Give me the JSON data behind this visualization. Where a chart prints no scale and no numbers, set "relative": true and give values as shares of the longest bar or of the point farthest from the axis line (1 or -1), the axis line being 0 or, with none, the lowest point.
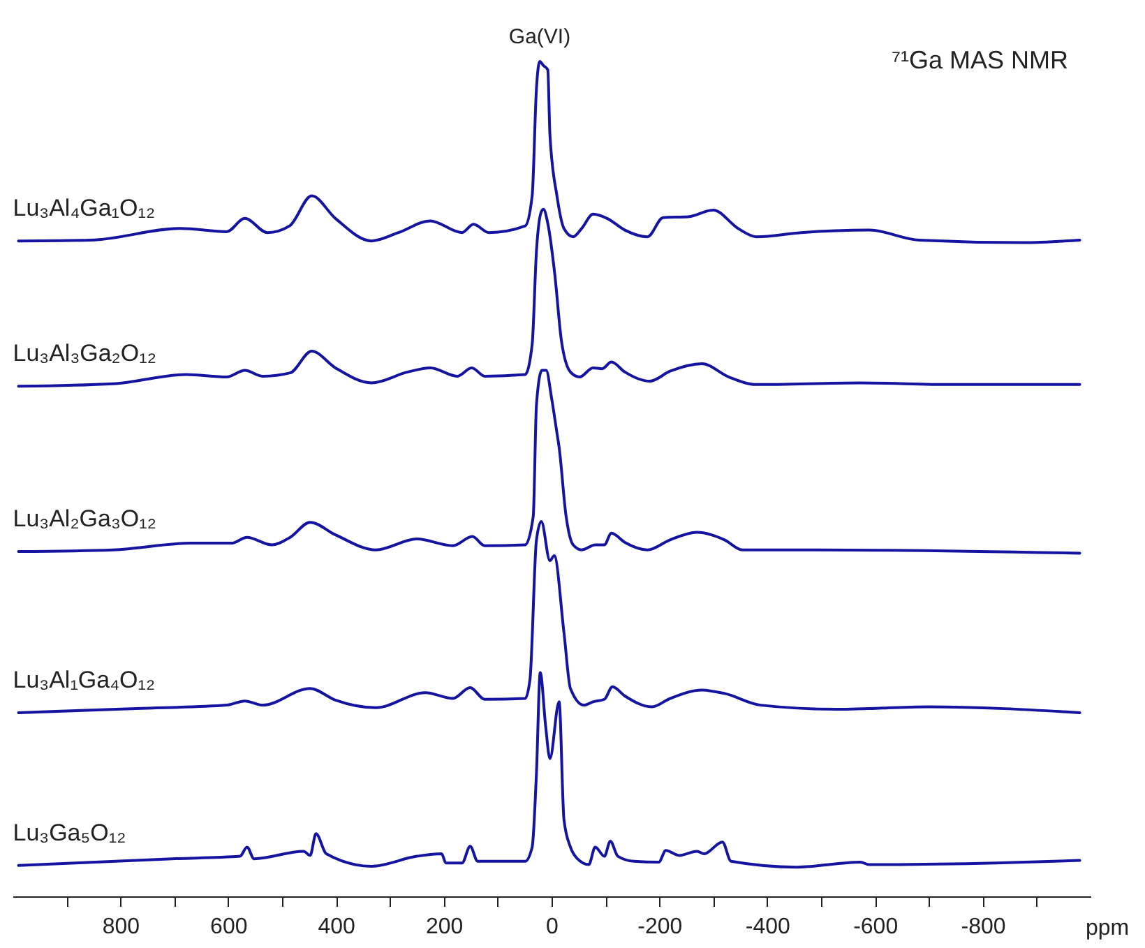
{
  "chart_data": {
    "type": "line",
    "relative": true,
    "title": "⁷¹Ga MAS NMR",
    "xlabel": "ppm",
    "xlim": [
      1000,
      -1000
    ],
    "xticks": [
      {
        "value": 900,
        "label": null
      },
      800,
      {
        "value": 700,
        "label": null
      },
      600,
      {
        "value": 500,
        "label": null
      },
      400,
      {
        "value": 300,
        "label": null
      },
      200,
      {
        "value": 100,
        "label": null
      },
      0,
      {
        "value": -100,
        "label": null
      },
      -200,
      {
        "value": -300,
        "label": null
      },
      -400,
      {
        "value": -500,
        "label": null
      },
      -600,
      {
        "value": -700,
        "label": null
      },
      -800,
      {
        "value": -900,
        "label": null
      }
    ],
    "annotations": [
      {
        "text": "Ga(VI)",
        "x": 22,
        "y": 1
      }
    ],
    "series": [
      {
        "name": "Lu₃Al₄Ga₁O₁₂",
        "color": "#1414a0",
        "x": [
          989,
          855,
          688,
          603,
          569,
          527,
          486,
          445,
          401,
          334,
          284,
          225,
          166,
          145,
          116,
          49,
          36,
          28,
          22,
          15,
          7,
          3,
          -10,
          -23,
          -40,
          -56,
          -77,
          -103,
          -136,
          -178,
          -207,
          -254,
          -300,
          -346,
          -380,
          -463,
          -589,
          -682,
          -875,
          -980
        ],
        "values": [
          0.785,
          0.786,
          0.8,
          0.796,
          0.812,
          0.795,
          0.803,
          0.839,
          0.812,
          0.785,
          0.795,
          0.809,
          0.795,
          0.805,
          0.795,
          0.803,
          0.839,
          0.968,
          1.0,
          0.995,
          0.99,
          0.912,
          0.839,
          0.8,
          0.79,
          0.8,
          0.817,
          0.812,
          0.798,
          0.79,
          0.813,
          0.814,
          0.822,
          0.8,
          0.79,
          0.795,
          0.798,
          0.786,
          0.783,
          0.786
        ]
      },
      {
        "name": "Lu₃Al₃Ga₂O₁₂",
        "color": "#1414a0",
        "x": [
          989,
          813,
          678,
          603,
          569,
          536,
          485,
          445,
          401,
          334,
          267,
          225,
          175,
          148,
          124,
          49,
          36,
          28,
          19,
          15,
          7,
          -6,
          -18,
          -35,
          -52,
          -77,
          -94,
          -111,
          -136,
          -182,
          -220,
          -279,
          -329,
          -380,
          -573,
          -741,
          -980
        ],
        "values": [
          0.611,
          0.614,
          0.625,
          0.622,
          0.63,
          0.623,
          0.627,
          0.653,
          0.633,
          0.615,
          0.628,
          0.633,
          0.623,
          0.633,
          0.623,
          0.625,
          0.661,
          0.773,
          0.82,
          0.823,
          0.806,
          0.745,
          0.667,
          0.628,
          0.622,
          0.633,
          0.632,
          0.64,
          0.628,
          0.617,
          0.629,
          0.638,
          0.622,
          0.613,
          0.615,
          0.613,
          0.613
        ]
      },
      {
        "name": "Lu₃Al₂Ga₃O₁₂",
        "color": "#1414a0",
        "x": [
          989,
          813,
          670,
          594,
          565,
          519,
          485,
          448,
          401,
          326,
          250,
          183,
          147,
          124,
          49,
          34,
          28,
          18,
          10,
          0,
          -10,
          -14,
          -27,
          -40,
          -56,
          -81,
          -98,
          -111,
          -136,
          -178,
          -220,
          -270,
          -321,
          -354,
          -489,
          -980
        ],
        "values": [
          0.413,
          0.415,
          0.423,
          0.423,
          0.43,
          0.421,
          0.43,
          0.448,
          0.433,
          0.415,
          0.428,
          0.42,
          0.431,
          0.42,
          0.421,
          0.455,
          0.589,
          0.63,
          0.63,
          0.597,
          0.555,
          0.538,
          0.455,
          0.421,
          0.415,
          0.421,
          0.421,
          0.435,
          0.424,
          0.415,
          0.427,
          0.436,
          0.427,
          0.415,
          0.415,
          0.411
        ]
      },
      {
        "name": "Lu₃Al₁Ga₄O₁₂",
        "color": "#1414a0",
        "x": [
          989,
          771,
          603,
          569,
          536,
          448,
          401,
          326,
          234,
          183,
          151,
          124,
          49,
          40,
          28,
          19,
          3,
          -5,
          -23,
          -35,
          -60,
          -77,
          -98,
          -113,
          -136,
          -186,
          -220,
          -279,
          -321,
          -388,
          -531,
          -699,
          -980
        ],
        "values": [
          0.22,
          0.225,
          0.229,
          0.234,
          0.229,
          0.249,
          0.235,
          0.226,
          0.244,
          0.237,
          0.25,
          0.236,
          0.237,
          0.26,
          0.427,
          0.449,
          0.402,
          0.408,
          0.316,
          0.249,
          0.229,
          0.233,
          0.236,
          0.251,
          0.24,
          0.227,
          0.237,
          0.247,
          0.243,
          0.229,
          0.224,
          0.227,
          0.22
        ]
      },
      {
        "name": "Lu₃Ga₅O₁₂",
        "color": "#1414a0",
        "x": [
          989,
          704,
          578,
          565,
          552,
          460,
          448,
          437,
          418,
          334,
          250,
          204,
          196,
          166,
          151,
          137,
          49,
          36,
          28,
          21,
          11,
          3,
          -14,
          -23,
          -35,
          -48,
          -69,
          -81,
          -98,
          -109,
          -123,
          -153,
          -199,
          -212,
          -237,
          -270,
          -283,
          -317,
          -333,
          -455,
          -573,
          -589,
          -824,
          -980
        ],
        "values": [
          0.037,
          0.045,
          0.048,
          0.059,
          0.045,
          0.054,
          0.049,
          0.075,
          0.051,
          0.036,
          0.048,
          0.051,
          0.04,
          0.04,
          0.06,
          0.042,
          0.042,
          0.059,
          0.148,
          0.268,
          0.204,
          0.165,
          0.233,
          0.092,
          0.059,
          0.045,
          0.038,
          0.059,
          0.048,
          0.066,
          0.048,
          0.042,
          0.041,
          0.055,
          0.049,
          0.054,
          0.051,
          0.065,
          0.042,
          0.035,
          0.041,
          0.038,
          0.04,
          0.043
        ]
      }
    ]
  }
}
